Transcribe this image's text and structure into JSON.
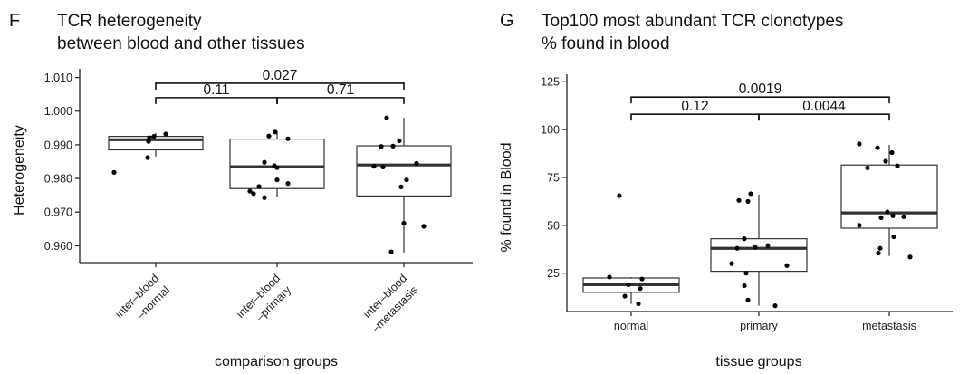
{
  "chart_data": [
    {
      "type": "box",
      "panel": "F",
      "title_lines": [
        "TCR heterogeneity",
        "between blood and other tissues"
      ],
      "xlabel": "comparison groups",
      "ylabel": "Heterogeneity",
      "ylim": [
        0.955,
        1.0115
      ],
      "yticks": [
        0.96,
        0.97,
        0.98,
        0.99,
        1.0,
        1.01
      ],
      "ytick_labels": [
        "0.960",
        "0.970",
        "0.980",
        "0.990",
        "1.000",
        "1.010"
      ],
      "categories": [
        [
          "inter–blood",
          "–normal"
        ],
        [
          "inter–blood",
          "–primary"
        ],
        [
          "inter–blood",
          "–metastasis"
        ]
      ],
      "boxes": [
        {
          "whisker_low": 0.9865,
          "q1": 0.9885,
          "median": 0.9915,
          "q3": 0.9925,
          "whisker_high": 0.9935
        },
        {
          "whisker_low": 0.9745,
          "q1": 0.977,
          "median": 0.9835,
          "q3": 0.9917,
          "whisker_high": 0.994
        },
        {
          "whisker_low": 0.958,
          "q1": 0.9748,
          "median": 0.984,
          "q3": 0.9897,
          "whisker_high": 0.998
        }
      ],
      "points": [
        [
          0.9925,
          0.9921,
          0.991,
          0.9932,
          0.9862,
          0.9818
        ],
        [
          0.9938,
          0.9918,
          0.9926,
          0.9848,
          0.9832,
          0.9796,
          0.9776,
          0.9762,
          0.9743,
          0.9755,
          0.9785,
          0.9838
        ],
        [
          0.998,
          0.9895,
          0.9896,
          0.9912,
          0.9845,
          0.9836,
          0.9834,
          0.9796,
          0.9775,
          0.9667,
          0.9658,
          0.9582
        ]
      ],
      "comparisons": [
        {
          "from": 0,
          "to": 1,
          "label": "0.11",
          "y": 1.004
        },
        {
          "from": 1,
          "to": 2,
          "label": "0.71",
          "y": 1.004
        },
        {
          "from": 0,
          "to": 2,
          "label": "0.027",
          "y": 1.0083
        }
      ]
    },
    {
      "type": "box",
      "panel": "G",
      "title_lines": [
        "Top100 most abundant TCR clonotypes",
        "% found in blood"
      ],
      "xlabel": "tissue groups",
      "ylabel": "% found in Blood",
      "ylim": [
        5,
        127
      ],
      "yticks": [
        25,
        50,
        75,
        100,
        125
      ],
      "ytick_labels": [
        "25",
        "50",
        "75",
        "100",
        "125"
      ],
      "categories": [
        [
          "normal"
        ],
        [
          "primary"
        ],
        [
          "metastasis"
        ]
      ],
      "boxes": [
        {
          "whisker_low": 9,
          "q1": 15,
          "median": 19,
          "q3": 22.5,
          "whisker_high": 23
        },
        {
          "whisker_low": 8,
          "q1": 26,
          "median": 38,
          "q3": 43,
          "whisker_high": 66
        },
        {
          "whisker_low": 34,
          "q1": 48.5,
          "median": 56.5,
          "q3": 81.5,
          "whisker_high": 92
        }
      ],
      "points": [
        [
          65.5,
          23,
          22,
          19,
          17,
          13,
          9
        ],
        [
          66.5,
          63,
          62.5,
          43,
          39.5,
          38.5,
          38,
          30,
          29,
          25,
          18.5,
          11,
          8
        ],
        [
          92.5,
          90.5,
          88,
          83.5,
          81,
          80,
          57,
          55,
          54.5,
          54,
          50,
          44,
          38,
          35.5,
          33.5
        ]
      ],
      "comparisons": [
        {
          "from": 0,
          "to": 1,
          "label": "0.12",
          "y": 108
        },
        {
          "from": 1,
          "to": 2,
          "label": "0.0044",
          "y": 108
        },
        {
          "from": 0,
          "to": 2,
          "label": "0.0019",
          "y": 117
        }
      ]
    }
  ]
}
